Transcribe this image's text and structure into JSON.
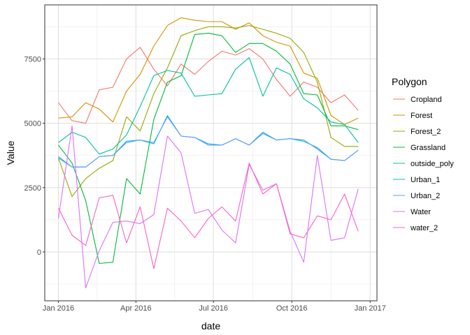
{
  "chart_data": {
    "type": "line",
    "title": "",
    "xlabel": "date",
    "ylabel": "Value",
    "x_ticks": [
      {
        "date": "2016-01-01",
        "label": "Jan 2016"
      },
      {
        "date": "2016-04-01",
        "label": "Apr 2016"
      },
      {
        "date": "2016-07-01",
        "label": "Jul 2016"
      },
      {
        "date": "2016-10-01",
        "label": "Oct 2016"
      },
      {
        "date": "2017-01-01",
        "label": "Jan 2017"
      }
    ],
    "y_ticks": [
      0,
      2500,
      5000,
      7500
    ],
    "xlim": [
      "2015-12-16",
      "2017-01-09"
    ],
    "ylim": [
      -1900,
      9600
    ],
    "grid": true,
    "legend_title": "Polygon",
    "legend_position": "right",
    "x": [
      "2016-01-01",
      "2016-01-17",
      "2016-02-02",
      "2016-02-18",
      "2016-03-05",
      "2016-03-21",
      "2016-04-06",
      "2016-04-22",
      "2016-05-08",
      "2016-05-24",
      "2016-06-09",
      "2016-06-25",
      "2016-07-11",
      "2016-07-27",
      "2016-08-12",
      "2016-08-28",
      "2016-09-13",
      "2016-09-29",
      "2016-10-15",
      "2016-10-31",
      "2016-11-16",
      "2016-12-02",
      "2016-12-18"
    ],
    "series": [
      {
        "name": "Cropland",
        "color": "#F8766D",
        "values": [
          5800,
          5100,
          5000,
          6300,
          6400,
          7500,
          7950,
          7100,
          6450,
          7300,
          6900,
          7400,
          7800,
          7650,
          7900,
          7500,
          6700,
          6050,
          6600,
          6400,
          5800,
          6100,
          5500
        ]
      },
      {
        "name": "Forest",
        "color": "#D39200",
        "values": [
          5200,
          5250,
          5800,
          5550,
          5050,
          6250,
          6900,
          8000,
          8800,
          9100,
          9000,
          8950,
          8950,
          8650,
          8900,
          8400,
          8150,
          8000,
          6950,
          6750,
          5300,
          4950,
          5200
        ]
      },
      {
        "name": "Forest_2",
        "color": "#93AA00",
        "values": [
          3650,
          2150,
          2850,
          3250,
          3550,
          5250,
          4700,
          6150,
          7150,
          8400,
          8600,
          8750,
          8750,
          8700,
          8800,
          8650,
          8500,
          8300,
          7750,
          6600,
          4450,
          4100,
          4100
        ]
      },
      {
        "name": "Grassland",
        "color": "#00BA38",
        "values": [
          4150,
          3450,
          2000,
          -450,
          -400,
          2850,
          2250,
          5150,
          6600,
          6850,
          8450,
          8500,
          8400,
          7750,
          8100,
          8100,
          7800,
          7300,
          6150,
          6100,
          4900,
          4900,
          4750
        ]
      },
      {
        "name": "outside_poly",
        "color": "#00C19F",
        "values": [
          4250,
          4650,
          4450,
          3800,
          4000,
          4550,
          5650,
          6850,
          7050,
          6950,
          6050,
          6100,
          6150,
          7100,
          7550,
          6050,
          7150,
          6900,
          5950,
          5600,
          5050,
          4950,
          4250
        ]
      },
      {
        "name": "Urban_1",
        "color": "#00B9E3",
        "values": [
          3700,
          3300,
          3300,
          3700,
          3750,
          4300,
          4350,
          4200,
          5300,
          4500,
          4450,
          4200,
          4150,
          4400,
          4150,
          4650,
          4350,
          4400,
          4300,
          4050,
          3600,
          3550,
          3950
        ]
      },
      {
        "name": "Urban_2",
        "color": "#619CFF",
        "values": [
          3650,
          3300,
          3300,
          3700,
          3750,
          4250,
          4350,
          4250,
          5250,
          4500,
          4450,
          4150,
          4150,
          4400,
          4150,
          4600,
          4350,
          4400,
          4350,
          4000,
          3600,
          3550,
          3950
        ]
      },
      {
        "name": "Water",
        "color": "#DB72FB",
        "values": [
          1300,
          4900,
          -1400,
          50,
          1150,
          1200,
          1100,
          1450,
          4500,
          3850,
          1500,
          1650,
          850,
          350,
          3400,
          2400,
          2650,
          800,
          -400,
          3750,
          450,
          550,
          2450
        ]
      },
      {
        "name": "water_2",
        "color": "#FF61C3",
        "values": [
          1700,
          650,
          250,
          2100,
          2200,
          350,
          1750,
          -650,
          1700,
          1200,
          550,
          1300,
          1750,
          1200,
          3450,
          2250,
          2650,
          700,
          550,
          1400,
          1250,
          2250,
          800
        ]
      }
    ]
  }
}
